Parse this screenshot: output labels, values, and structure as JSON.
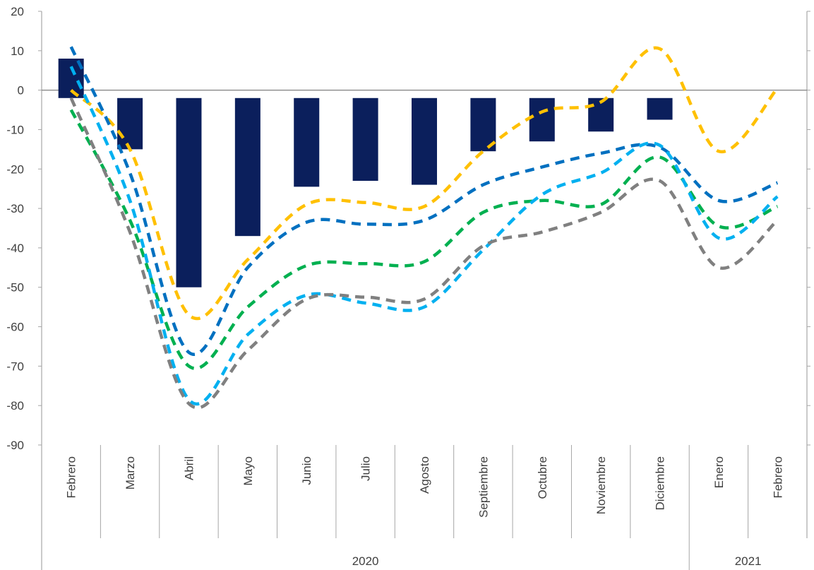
{
  "chart_data": {
    "type": "bar",
    "ylim": [
      -90,
      20
    ],
    "y_ticks": [
      "20",
      "10",
      "0",
      "-10",
      "-20",
      "-30",
      "-40",
      "-50",
      "-60",
      "-70",
      "-80",
      "-90"
    ],
    "categories": [
      "Febrero",
      "Marzo",
      "Abril",
      "Mayo",
      "Junio",
      "Julio",
      "Agosto",
      "Septiembre",
      "Octubre",
      "Noviembre",
      "Diciembre",
      "Enero",
      "Febrero"
    ],
    "year_groups": [
      {
        "label": "2020",
        "count": 11
      },
      {
        "label": "2021",
        "count": 2
      }
    ],
    "grid": false,
    "legend": "none",
    "bars": {
      "color": "#0b1f5c",
      "spans": [
        [
          -2,
          8
        ],
        [
          -15,
          -2
        ],
        [
          -50,
          -2
        ],
        [
          -37,
          -2
        ],
        [
          -24.5,
          -2
        ],
        [
          -23,
          -2
        ],
        [
          -24,
          -2
        ],
        [
          -15.5,
          -2
        ],
        [
          -13,
          -2
        ],
        [
          -10.5,
          -2
        ],
        [
          -7.5,
          -2
        ],
        null,
        null
      ]
    },
    "series": [
      {
        "color": "#ffc000",
        "values": [
          0,
          -15,
          -57,
          -43,
          -29,
          -28.5,
          -29.5,
          -15.5,
          -5.5,
          -3,
          10.5,
          -15.5,
          0.5
        ]
      },
      {
        "color": "#0070c0",
        "values": [
          11,
          -21,
          -66.5,
          -45,
          -33.5,
          -34,
          -33,
          -24,
          -19.5,
          -16,
          -14.5,
          -28,
          -23.5
        ]
      },
      {
        "color": "#00b050",
        "values": [
          -5,
          -33,
          -70,
          -55,
          -44.5,
          -44,
          -43.5,
          -31,
          -28,
          -29,
          -17,
          -34.5,
          -29.5
        ]
      },
      {
        "color": "#00b0f0",
        "values": [
          6,
          -28,
          -78.5,
          -62,
          -52,
          -54,
          -55,
          -40.5,
          -26.5,
          -21,
          -14,
          -37.5,
          -27
        ]
      },
      {
        "color": "#808080",
        "values": [
          -2,
          -36,
          -79.5,
          -66,
          -53,
          -52.5,
          -53,
          -39.5,
          -36,
          -31,
          -23,
          -45,
          -33
        ]
      }
    ]
  }
}
